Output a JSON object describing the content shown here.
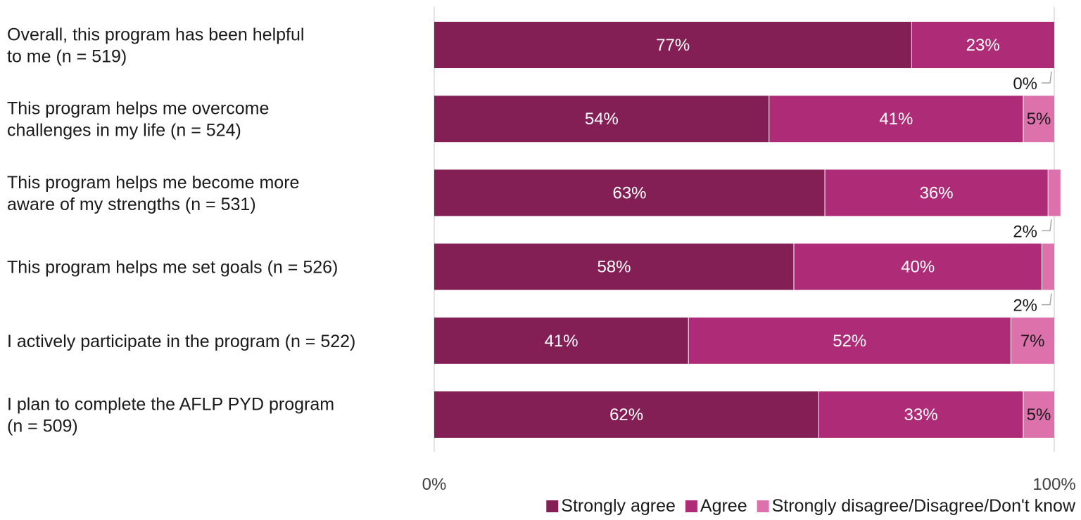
{
  "chart_data": {
    "type": "bar",
    "orientation": "horizontal",
    "stacked": true,
    "percent_stacked": true,
    "categories": [
      [
        "Overall, this program has been helpful",
        "to me (n = 519)"
      ],
      [
        "This program helps me overcome",
        "challenges in my life (n = 524)"
      ],
      [
        "This program helps me become more",
        "aware of my strengths (n = 531)"
      ],
      [
        "This program helps me set goals (n = 526)"
      ],
      [
        "I actively participate in the program (n = 522)"
      ],
      [
        "I plan to complete the AFLP PYD program",
        "(n = 509)"
      ]
    ],
    "series": [
      {
        "name": "Strongly agree",
        "color": "#841f56",
        "values": [
          77,
          54,
          63,
          58,
          41,
          62
        ],
        "labels": [
          "77%",
          "54%",
          "63%",
          "58%",
          "41%",
          "62%"
        ]
      },
      {
        "name": "Agree",
        "color": "#ae2c77",
        "values": [
          23,
          41,
          36,
          40,
          52,
          33
        ],
        "labels": [
          "23%",
          "41%",
          "36%",
          "40%",
          "52%",
          "33%"
        ]
      },
      {
        "name": "Strongly disagree/Disagree/Don't know",
        "color": "#dd71ab",
        "values": [
          0,
          5,
          2,
          2,
          7,
          5
        ],
        "labels": [
          "0%",
          "5%",
          "2%",
          "2%",
          "7%",
          "5%"
        ]
      }
    ],
    "xlim": [
      0,
      100
    ],
    "x_tick_labels": [
      "0%",
      "100%"
    ],
    "legend_position": "bottom-right",
    "grid": false
  }
}
